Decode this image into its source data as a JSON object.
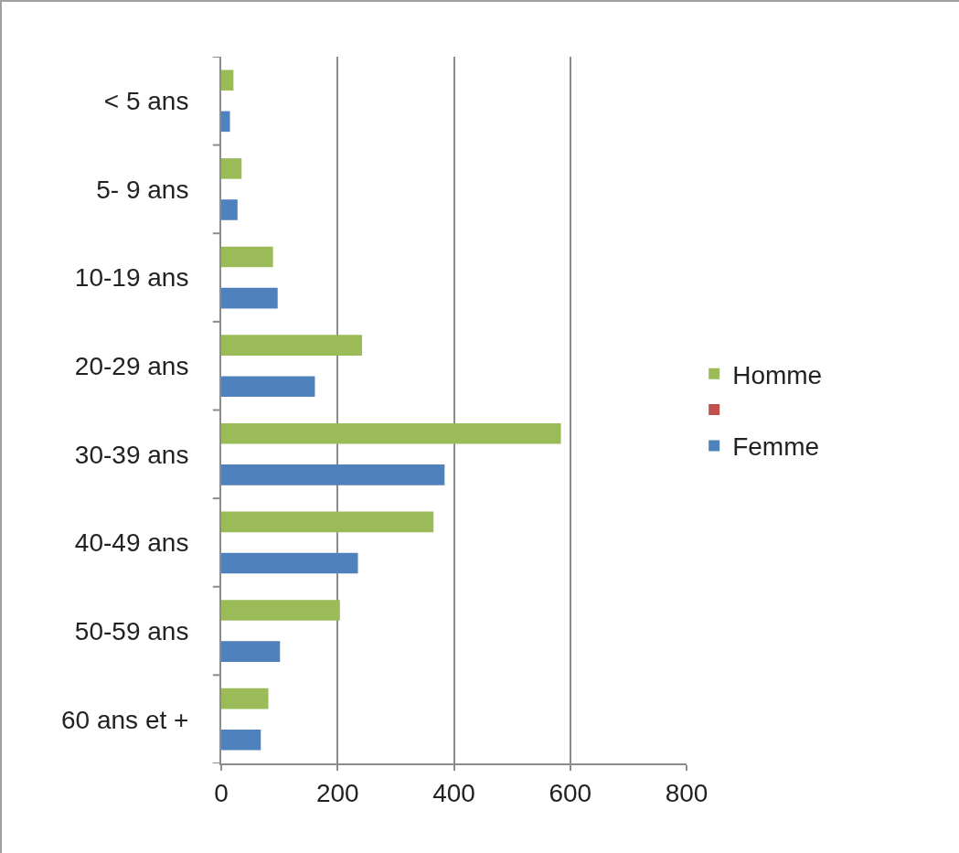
{
  "chart_data": {
    "type": "bar",
    "orientation": "horizontal",
    "categories": [
      "< 5 ans",
      "5- 9 ans",
      "10-19 ans",
      "20-29 ans",
      "30-39 ans",
      "40-49 ans",
      "50-59 ans",
      "60 ans et +"
    ],
    "series": [
      {
        "name": "Homme",
        "color": "#9bbb59",
        "values": [
          21,
          35,
          89,
          242,
          584,
          365,
          204,
          81
        ]
      },
      {
        "color": "#c0504d",
        "values": [
          null,
          null,
          null,
          null,
          null,
          null,
          null,
          null
        ]
      },
      {
        "name": "Femme",
        "color": "#4f81bd",
        "values": [
          15,
          28,
          97,
          161,
          384,
          235,
          101,
          68
        ]
      }
    ],
    "xlim": [
      0,
      800
    ],
    "xticks": [
      0,
      200,
      400,
      600,
      800
    ],
    "grid": "x",
    "legend": "right"
  }
}
